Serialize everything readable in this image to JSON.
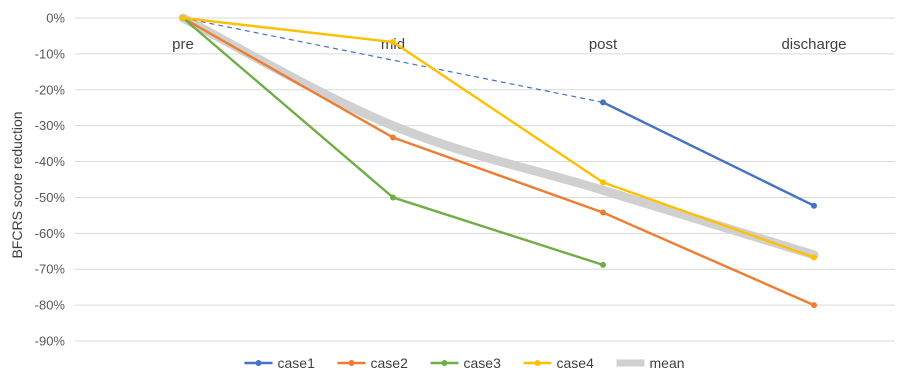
{
  "chart_data": {
    "type": "line",
    "title": "",
    "xlabel": "",
    "ylabel": "BFCRS score reduction",
    "categories": [
      "pre",
      "mid",
      "post",
      "discharge"
    ],
    "ylim": [
      -90,
      0
    ],
    "y_ticks": [
      0,
      -10,
      -20,
      -30,
      -40,
      -50,
      -60,
      -70,
      -80,
      -90
    ],
    "y_tick_labels": [
      "0%",
      "-10%",
      "-20%",
      "-30%",
      "-40%",
      "-50%",
      "-60%",
      "-70%",
      "-80%",
      "-90%"
    ],
    "grid": true,
    "legend_position": "bottom",
    "series": [
      {
        "name": "case1",
        "color": "#4472C4",
        "values": [
          0,
          null,
          -23.5,
          -52.3
        ],
        "gap": "dashed"
      },
      {
        "name": "case2",
        "color": "#ED7D31",
        "values": [
          0,
          -33.3,
          -54.2,
          -80.0
        ]
      },
      {
        "name": "case3",
        "color": "#70AD47",
        "values": [
          0,
          -50.0,
          -68.8,
          null
        ]
      },
      {
        "name": "case4",
        "color": "#FFC000",
        "values": [
          0,
          -6.7,
          -45.8,
          -66.7
        ]
      },
      {
        "name": "mean",
        "color": "#D0D0D0",
        "values": [
          0,
          -30.0,
          -48.0,
          -66.0
        ],
        "style": "thick-smooth"
      }
    ]
  }
}
